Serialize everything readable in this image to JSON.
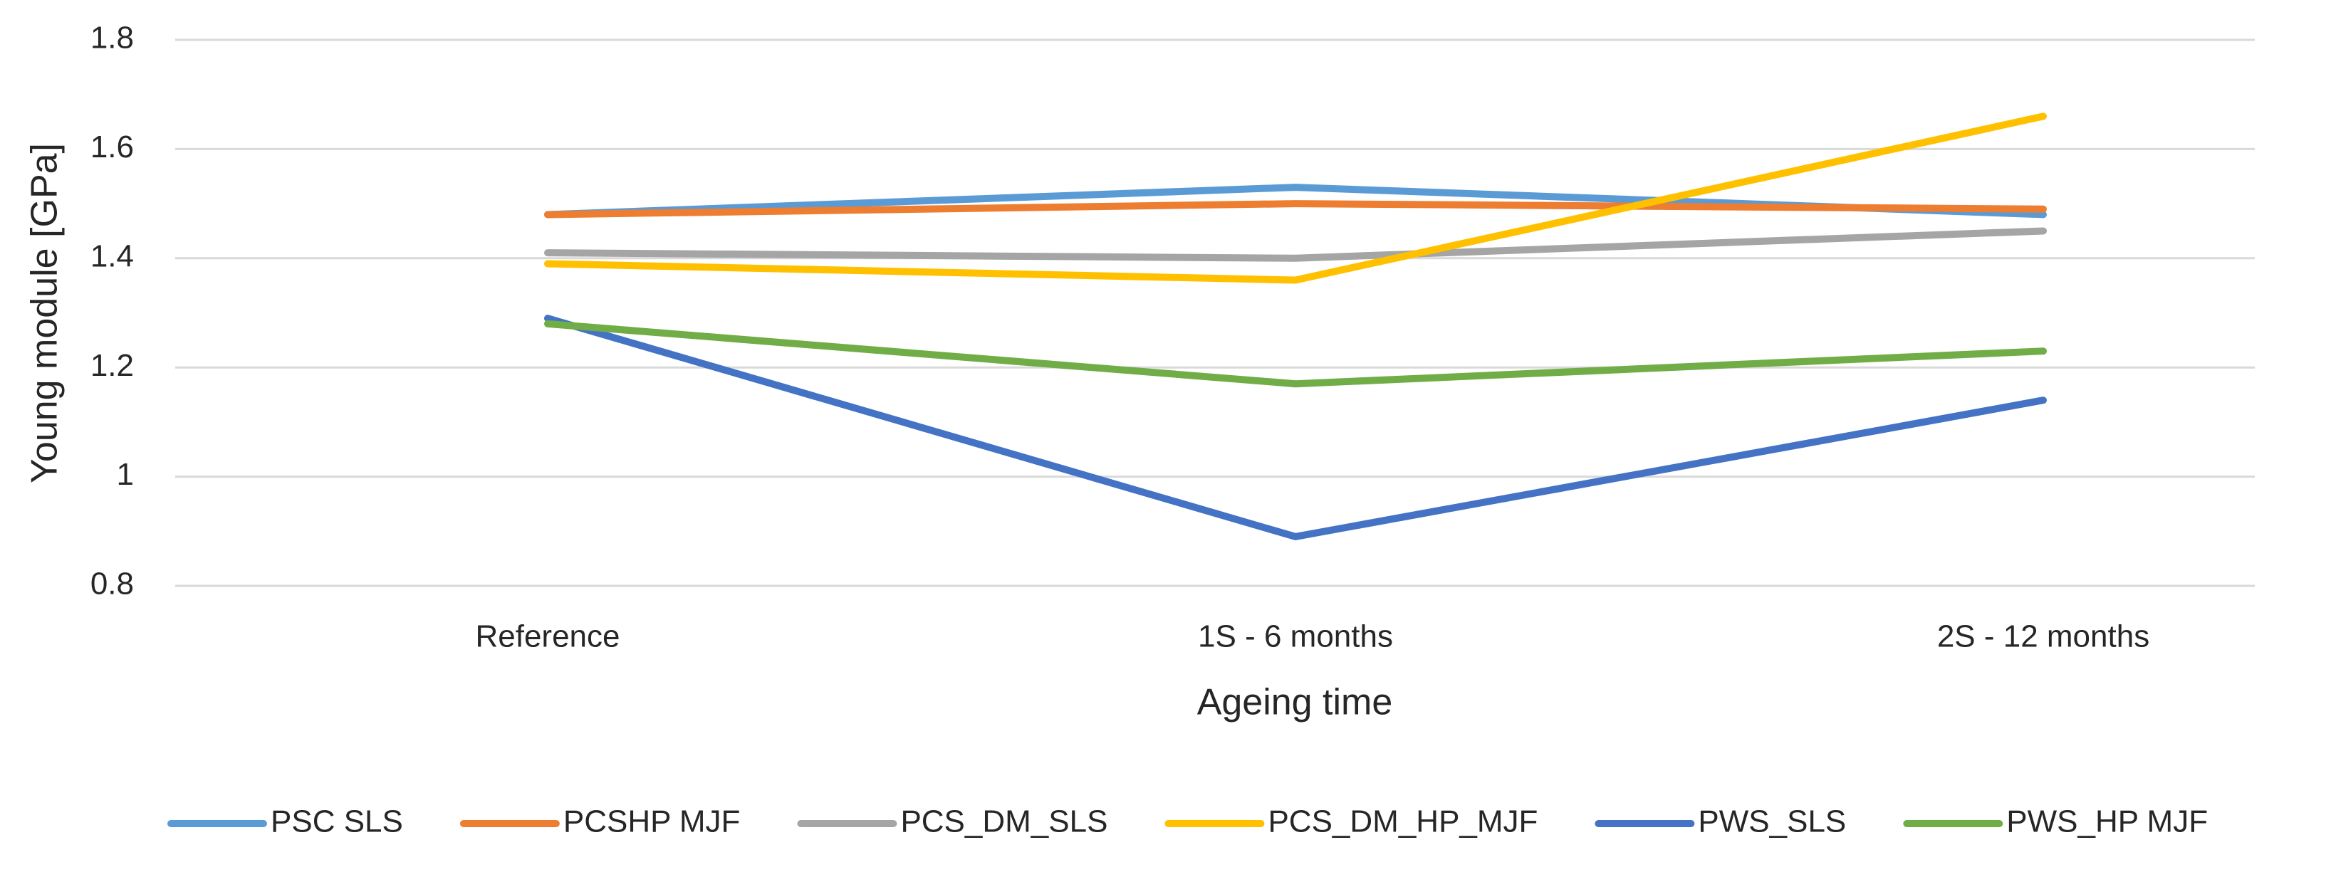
{
  "chart_data": {
    "type": "line",
    "y_label": "Young module [GPa]",
    "x_label": "Ageing time",
    "categories": [
      "Reference",
      "1S - 6 months",
      "2S - 12 months"
    ],
    "series": [
      {
        "name": "PSC SLS",
        "color": "#5b9bd5",
        "values": [
          1.48,
          1.53,
          1.48
        ]
      },
      {
        "name": "PCSHP MJF",
        "color": "#ed7d31",
        "values": [
          1.48,
          1.5,
          1.49
        ]
      },
      {
        "name": "PCS_DM_SLS",
        "color": "#a5a5a5",
        "values": [
          1.41,
          1.4,
          1.45
        ]
      },
      {
        "name": "PCS_DM_HP_MJF",
        "color": "#ffc000",
        "values": [
          1.39,
          1.36,
          1.66
        ]
      },
      {
        "name": "PWS_SLS",
        "color": "#4472c4",
        "values": [
          1.29,
          0.89,
          1.14
        ]
      },
      {
        "name": "PWS_HP MJF",
        "color": "#70ad47",
        "values": [
          1.28,
          1.17,
          1.23
        ]
      }
    ],
    "ylim": [
      0.8,
      1.8
    ],
    "yticks": [
      0.8,
      1,
      1.2,
      1.4,
      1.6,
      1.8
    ],
    "grid": true,
    "legend": "bottom"
  }
}
